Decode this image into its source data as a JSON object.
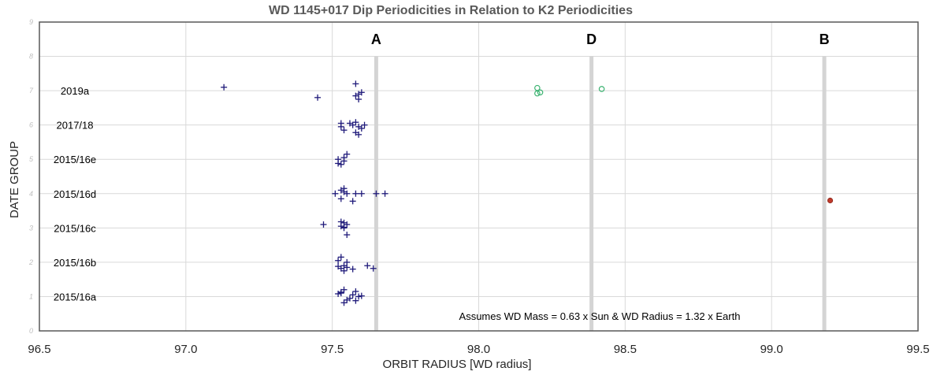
{
  "chart_data": {
    "type": "scatter",
    "title": "WD 1145+017 Dip Periodicities in Relation to K2 Periodicities",
    "xlabel": "ORBIT RADIUS [WD radius]",
    "ylabel": "DATE GROUP",
    "xlim": [
      96.5,
      99.5
    ],
    "ylim": [
      0,
      9
    ],
    "xticks": [
      "96.5",
      "97.0",
      "97.5",
      "98.0",
      "98.5",
      "99.0",
      "99.5"
    ],
    "yticks": [
      "0",
      "1",
      "2",
      "3",
      "4",
      "5",
      "6",
      "7",
      "8",
      "9"
    ],
    "grid": true,
    "group_labels": [
      {
        "text": "2015/16a",
        "y": 1
      },
      {
        "text": "2015/16b",
        "y": 2
      },
      {
        "text": "2015/16c",
        "y": 3
      },
      {
        "text": "2015/16d",
        "y": 4
      },
      {
        "text": "2015/16e",
        "y": 5
      },
      {
        "text": "2017/18",
        "y": 6
      },
      {
        "text": "2019a",
        "y": 7
      }
    ],
    "reference_lines": [
      {
        "label": "A",
        "x": 97.65
      },
      {
        "label": "D",
        "x": 98.385
      },
      {
        "label": "B",
        "x": 99.18
      }
    ],
    "annotation": "Assumes WD Mass = 0.63 x Sun & WD Radius  = 1.32 x Earth",
    "colors": {
      "plus": "#1f1a7a",
      "circle": "#3cb371",
      "dot": "#c0392b",
      "refline": "#d4d4d4",
      "grid": "#d9d9d9"
    },
    "series": [
      {
        "marker": "plus",
        "points": [
          [
            97.53,
            1.1
          ],
          [
            97.54,
            0.82
          ],
          [
            97.56,
            0.95
          ],
          [
            97.57,
            1.05
          ],
          [
            97.58,
            1.15
          ],
          [
            97.59,
            1.0
          ],
          [
            97.54,
            1.2
          ],
          [
            97.52,
            1.08
          ],
          [
            97.55,
            0.9
          ],
          [
            97.58,
            0.88
          ],
          [
            97.6,
            1.02
          ],
          [
            97.53,
            1.13
          ],
          [
            97.52,
            2.05
          ],
          [
            97.53,
            2.15
          ],
          [
            97.54,
            1.9
          ],
          [
            97.53,
            1.82
          ],
          [
            97.55,
            1.85
          ],
          [
            97.57,
            1.8
          ],
          [
            97.55,
            2.0
          ],
          [
            97.62,
            1.9
          ],
          [
            97.64,
            1.82
          ],
          [
            97.54,
            1.75
          ],
          [
            97.52,
            1.88
          ],
          [
            97.47,
            3.1
          ],
          [
            97.53,
            3.05
          ],
          [
            97.54,
            3.15
          ],
          [
            97.55,
            3.1
          ],
          [
            97.54,
            3.0
          ],
          [
            97.55,
            2.8
          ],
          [
            97.53,
            3.18
          ],
          [
            97.54,
            3.02
          ],
          [
            97.51,
            4.0
          ],
          [
            97.53,
            4.1
          ],
          [
            97.54,
            4.15
          ],
          [
            97.55,
            4.0
          ],
          [
            97.53,
            3.85
          ],
          [
            97.58,
            4.0
          ],
          [
            97.6,
            4.0
          ],
          [
            97.57,
            3.78
          ],
          [
            97.65,
            4.0
          ],
          [
            97.68,
            4.0
          ],
          [
            97.54,
            4.05
          ],
          [
            97.52,
            5.0
          ],
          [
            97.54,
            5.05
          ],
          [
            97.53,
            4.85
          ],
          [
            97.55,
            5.15
          ],
          [
            97.54,
            4.95
          ],
          [
            97.52,
            4.88
          ],
          [
            97.53,
            6.05
          ],
          [
            97.54,
            5.85
          ],
          [
            97.56,
            6.05
          ],
          [
            97.58,
            6.08
          ],
          [
            97.59,
            5.95
          ],
          [
            97.6,
            5.9
          ],
          [
            97.61,
            6.0
          ],
          [
            97.58,
            5.78
          ],
          [
            97.59,
            5.72
          ],
          [
            97.57,
            6.0
          ],
          [
            97.53,
            5.95
          ],
          [
            97.13,
            7.1
          ],
          [
            97.45,
            6.8
          ],
          [
            97.58,
            7.2
          ],
          [
            97.58,
            6.85
          ],
          [
            97.59,
            6.9
          ],
          [
            97.59,
            6.75
          ],
          [
            97.6,
            6.95
          ]
        ]
      },
      {
        "marker": "circle",
        "points": [
          [
            98.2,
            7.08
          ],
          [
            98.21,
            6.95
          ],
          [
            98.2,
            6.92
          ],
          [
            98.42,
            7.05
          ]
        ]
      },
      {
        "marker": "dot",
        "points": [
          [
            99.2,
            3.8
          ]
        ]
      }
    ]
  }
}
